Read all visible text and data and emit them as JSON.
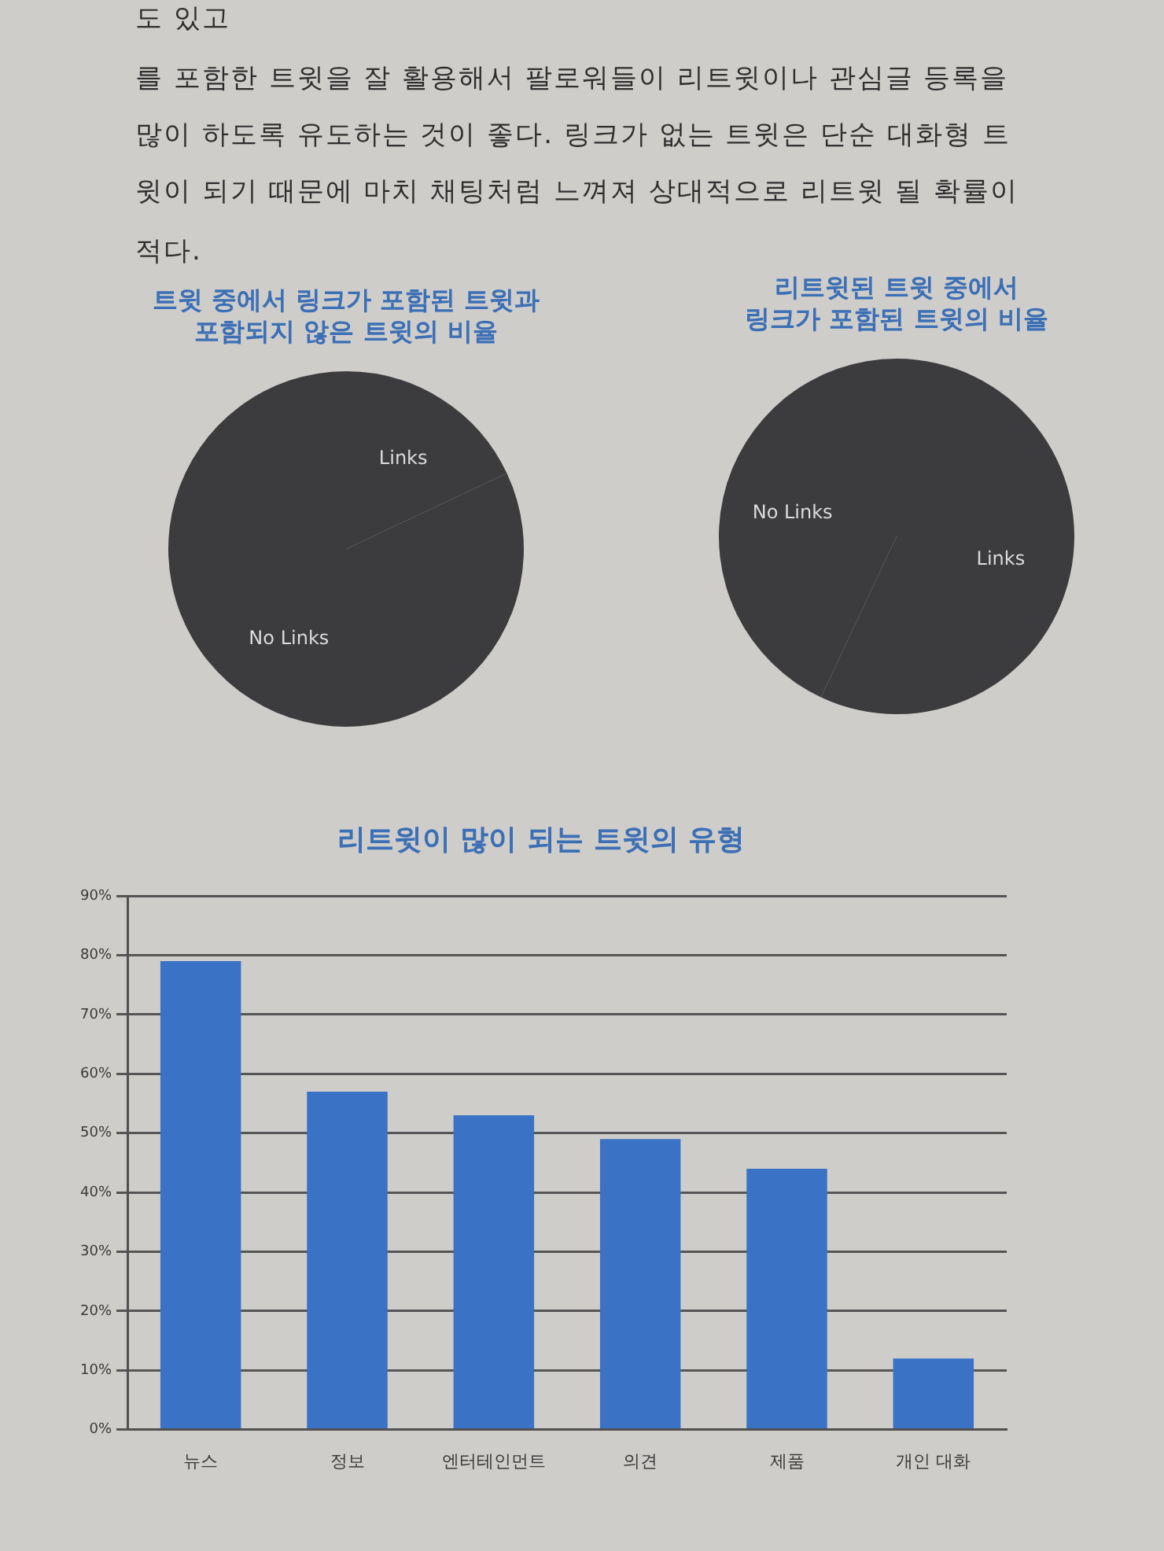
{
  "chart_data": [
    {
      "type": "other",
      "annotations": [
        "도 있고",
        "를 포함한 트윗을 잘 활용해서 팔로워들이 리트윗이나 관심글 등록을",
        "많이 하도록 유도하는 것이 좋다. 링크가 없는 트윗은 단순 대화형 트",
        "윗이 되기 때문에 마치 채팅처럼 느껴져 상대적으로 리트윗 될 확률이",
        "적다."
      ]
    },
    {
      "type": "pie",
      "title": "트윗 중에서 링크가 포함된 트윗과\n포함되지 않은 트윗의 비율",
      "categories": [
        "Links",
        "No Links"
      ],
      "values": [
        18,
        82
      ],
      "colors": [
        "#3c3b3d",
        "#3c3b3d"
      ]
    },
    {
      "type": "pie",
      "title": "리트윗된 트윗 중에서\n링크가 포함된 트윗의 비율",
      "categories": [
        "Links",
        "No Links"
      ],
      "values": [
        57,
        43
      ],
      "colors": [
        "#3c3b3d",
        "#3c3b3d"
      ]
    },
    {
      "type": "bar",
      "title": "리트윗이 많이 되는 트윗의 유형",
      "categories": [
        "뉴스",
        "정보",
        "엔터테인먼트",
        "의견",
        "제품",
        "개인 대화"
      ],
      "values": [
        79,
        57,
        53,
        49,
        44,
        12
      ],
      "color": "#3a72c6",
      "ylim": [
        0,
        90
      ],
      "yticks": [
        {
          "value": 0,
          "label": "0%"
        },
        {
          "value": 10,
          "label": "10%"
        },
        {
          "value": 20,
          "label": "20%"
        },
        {
          "value": 30,
          "label": "30%"
        },
        {
          "value": 40,
          "label": "40%"
        },
        {
          "value": 50,
          "label": "50%"
        },
        {
          "value": 60,
          "label": "60%"
        },
        {
          "value": 70,
          "label": "70%"
        },
        {
          "value": 80,
          "label": "80%"
        },
        {
          "value": 90,
          "label": "90%"
        }
      ],
      "grid": "y"
    }
  ]
}
